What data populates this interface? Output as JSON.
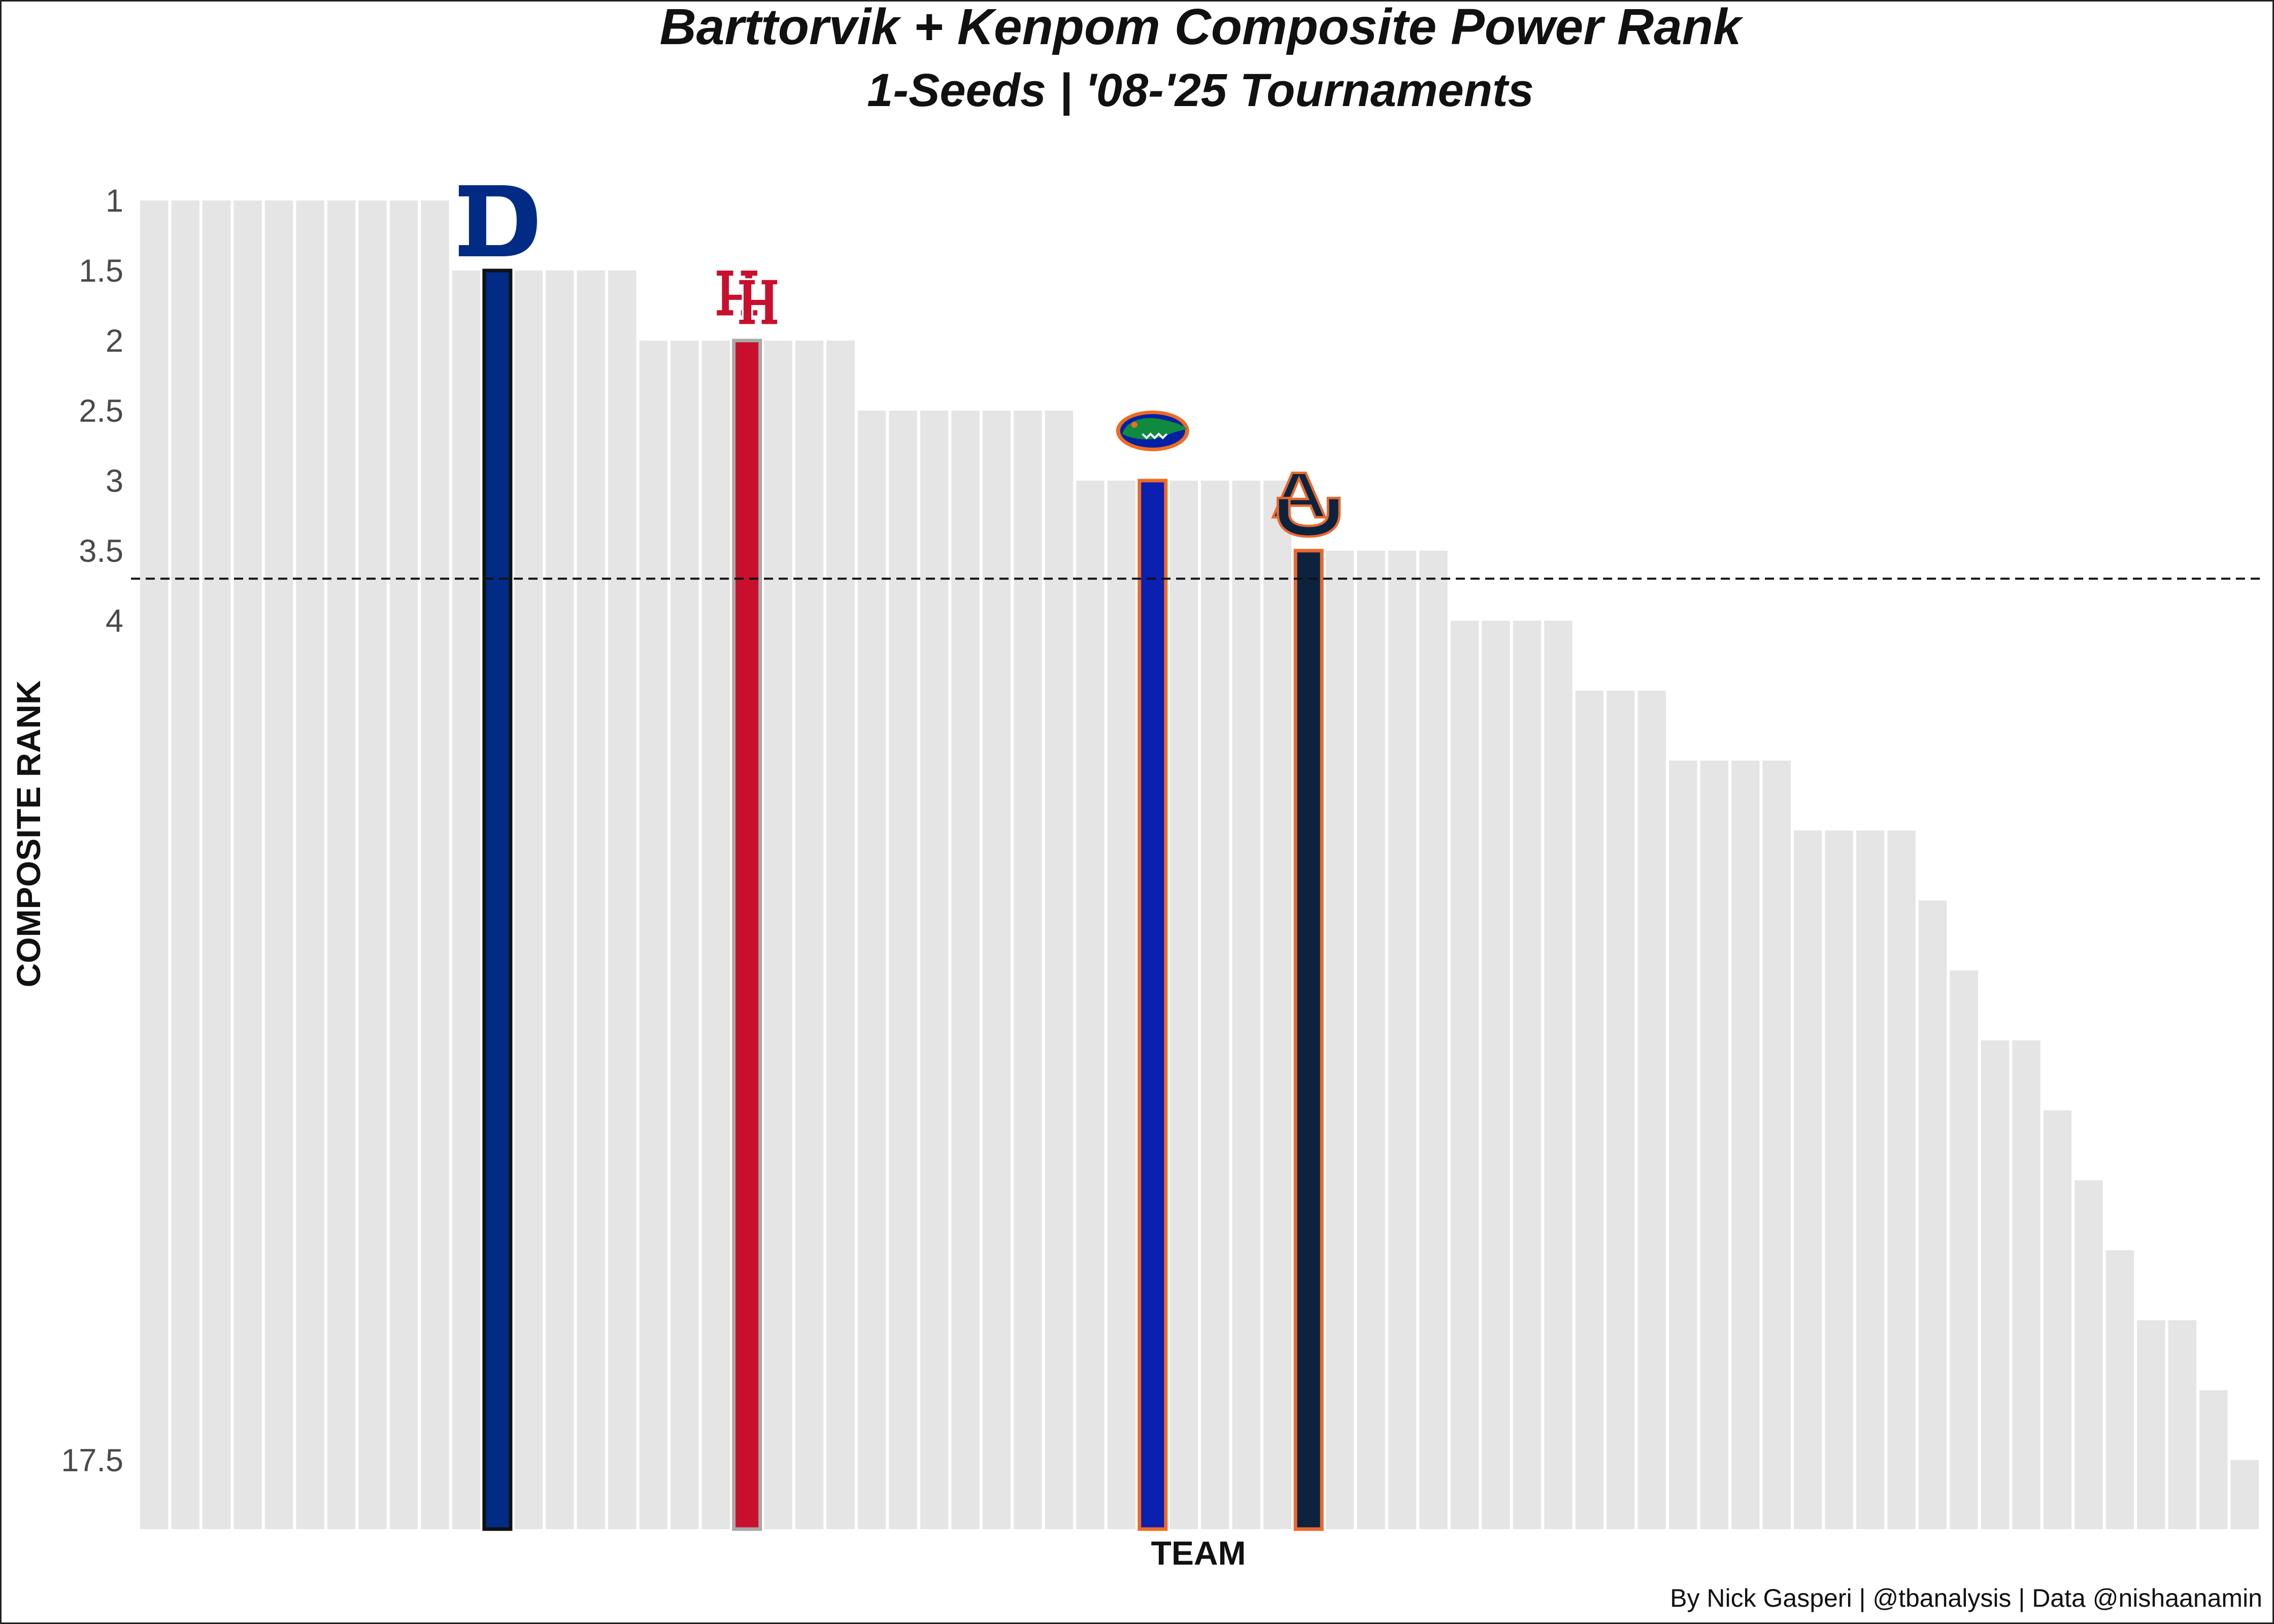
{
  "chart_data": {
    "type": "bar",
    "title": "Barttorvik + Kenpom Composite Power Rank",
    "subtitle": "1-Seeds | '08-'25 Tournaments",
    "xlabel": "TEAM",
    "ylabel": "COMPOSITE RANK",
    "caption": "By Nick Gasperi | @tbanalysis | Data @nishaanamin",
    "y_axis": {
      "reversed": true,
      "range": [
        0.5,
        19.5
      ],
      "nonlinear_scale": true
    },
    "y_ticks": [
      {
        "value": 1,
        "label": "1"
      },
      {
        "value": 1.5,
        "label": "1.5"
      },
      {
        "value": 2,
        "label": "2"
      },
      {
        "value": 2.5,
        "label": "2.5"
      },
      {
        "value": 3,
        "label": "3"
      },
      {
        "value": 3.5,
        "label": "3.5"
      },
      {
        "value": 4,
        "label": "4"
      },
      {
        "value": 17.5,
        "label": "17.5"
      }
    ],
    "reference_line": {
      "value": 3.7,
      "style": "dashed",
      "color": "#111111"
    },
    "grid": false,
    "bar_color_default": "#e5e5e5",
    "values": [
      1,
      1,
      1,
      1,
      1,
      1,
      1,
      1,
      1,
      1,
      1.5,
      1.5,
      1.5,
      1.5,
      1.5,
      1.5,
      2,
      2,
      2,
      2,
      2,
      2,
      2,
      2.5,
      2.5,
      2.5,
      2.5,
      2.5,
      2.5,
      2.5,
      3,
      3,
      3,
      3,
      3,
      3,
      3,
      3.5,
      3.5,
      3.5,
      3.5,
      3.5,
      4,
      4,
      4,
      4,
      4.5,
      4.5,
      4.5,
      5,
      5,
      5,
      5,
      5.5,
      5.5,
      5.5,
      5.5,
      6,
      6.5,
      7,
      7,
      7.5,
      8,
      8.5,
      9,
      9,
      9.5,
      10
    ],
    "highlights": [
      {
        "index": 11,
        "logo": "duke-logo-icon",
        "fill": "#012b84",
        "stroke": "#111111"
      },
      {
        "index": 19,
        "logo": "houston-logo-icon",
        "fill": "#c8102e",
        "stroke": "#a8a8a8"
      },
      {
        "index": 32,
        "logo": "florida-logo-icon",
        "fill": "#0b1fb0",
        "stroke": "#f06a22"
      },
      {
        "index": 37,
        "logo": "auburn-logo-icon",
        "fill": "#0c2340",
        "stroke": "#e8692e"
      }
    ]
  }
}
